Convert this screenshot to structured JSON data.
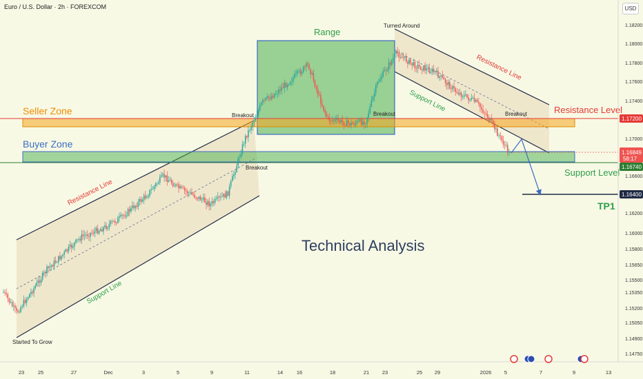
{
  "header": {
    "symbol": "Euro / U.S. Dollar · 2h · FOREXCOM",
    "currency": "USD"
  },
  "colors": {
    "bull": "#26a69a",
    "bear": "#ef5350",
    "seller_zone": "#f5a623",
    "buyer_zone": "#3c6bc2",
    "range_box": "#4caf50",
    "resistance_level": "#e53935",
    "support_level": "#2e7d32",
    "tp_line": "#1f2a44",
    "channel": "#1f2a44",
    "title": "#2f3f5f"
  },
  "chart_data": {
    "type": "candlestick",
    "title": "Technical Analysis",
    "x_ticks": [
      "23",
      "25",
      "27",
      "Dec",
      "3",
      "5",
      "9",
      "11",
      "14",
      "16",
      "18",
      "21",
      "23",
      "25",
      "29",
      "2026",
      "5",
      "7",
      "9",
      "13"
    ],
    "y_ticks": [
      1.1475,
      1.149,
      1.1505,
      1.152,
      1.1535,
      1.155,
      1.1565,
      1.158,
      1.16,
      1.162,
      1.164,
      1.166,
      1.168,
      1.17,
      1.172,
      1.174,
      1.176,
      1.178,
      1.18,
      1.182
    ],
    "ylim": [
      1.1468,
      1.1836
    ],
    "grid": false,
    "levels": {
      "resistance": {
        "value": 1.172,
        "label": "1.17200",
        "name": "Resistance Level"
      },
      "support": {
        "value": 1.1674,
        "label": "1.16740",
        "name": "Support Level"
      },
      "tp": {
        "value": 1.164,
        "label": "1.16400",
        "name": "TP1"
      },
      "last_price": {
        "value": 1.16849,
        "label": "1.16849",
        "countdown": "58:17"
      }
    },
    "zones": [
      {
        "name": "Seller Zone",
        "from": 1.1712,
        "to": 1.1727
      },
      {
        "name": "Buyer Zone",
        "from": 1.1674,
        "to": 1.1688
      }
    ],
    "range_box": {
      "name": "Range",
      "from": 1.1708,
      "to": 1.1803
    },
    "annotations": [
      "Resistance Line",
      "Support Line",
      "Started To Grow",
      "Breakout",
      "Breakout",
      "Breakout",
      "Turned Around",
      "Resistance Line",
      "Support Line",
      "Breakout"
    ],
    "price_path": [
      {
        "x": "Nov 21",
        "y": 1.1535
      },
      {
        "x": "Nov 24",
        "y": 1.1515
      },
      {
        "x": "Nov 26",
        "y": 1.156
      },
      {
        "x": "Nov 27",
        "y": 1.1575
      },
      {
        "x": "Nov 28",
        "y": 1.1595
      },
      {
        "x": "Dec 1",
        "y": 1.1605
      },
      {
        "x": "Dec 2",
        "y": 1.1615
      },
      {
        "x": "Dec 3",
        "y": 1.164
      },
      {
        "x": "Dec 4",
        "y": 1.166
      },
      {
        "x": "Dec 5",
        "y": 1.1648
      },
      {
        "x": "Dec 8",
        "y": 1.1638
      },
      {
        "x": "Dec 9",
        "y": 1.163
      },
      {
        "x": "Dec 10",
        "y": 1.1642
      },
      {
        "x": "Dec 11",
        "y": 1.17
      },
      {
        "x": "Dec 12",
        "y": 1.1738
      },
      {
        "x": "Dec 14",
        "y": 1.1748
      },
      {
        "x": "Dec 16",
        "y": 1.1778
      },
      {
        "x": "Dec 17",
        "y": 1.1745
      },
      {
        "x": "Dec 18",
        "y": 1.172
      },
      {
        "x": "Dec 19",
        "y": 1.1715
      },
      {
        "x": "Dec 21",
        "y": 1.1718
      },
      {
        "x": "Dec 22",
        "y": 1.176
      },
      {
        "x": "Dec 24",
        "y": 1.179
      },
      {
        "x": "Dec 26",
        "y": 1.1778
      },
      {
        "x": "Dec 29",
        "y": 1.177
      },
      {
        "x": "Dec 31",
        "y": 1.175
      },
      {
        "x": "Jan 2",
        "y": 1.1738
      },
      {
        "x": "Jan 3",
        "y": 1.1725
      },
      {
        "x": "Jan 4",
        "y": 1.1702
      },
      {
        "x": "Jan 5",
        "y": 1.1685
      }
    ]
  }
}
